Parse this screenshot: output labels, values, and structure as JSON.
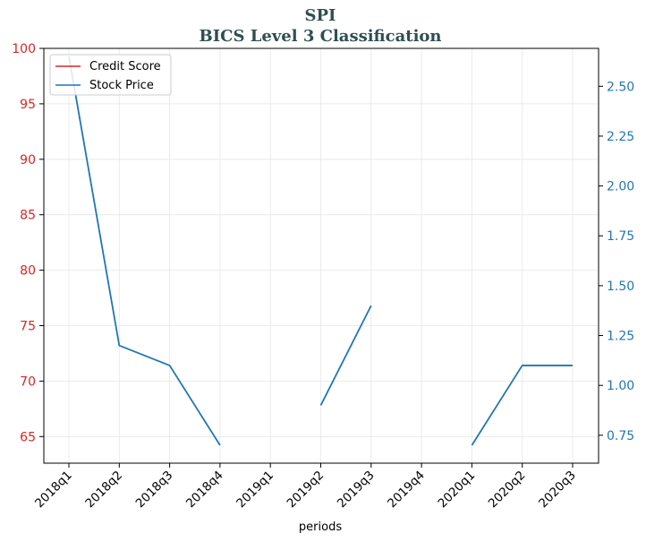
{
  "chart_data": {
    "type": "line",
    "title": "SPI",
    "subtitle": "BICS Level 3 Classification",
    "xlabel": "periods",
    "categories": [
      "2018q1",
      "2018q2",
      "2018q3",
      "2018q4",
      "2019q1",
      "2019q2",
      "2019q3",
      "2019q4",
      "2020q1",
      "2020q2",
      "2020q3"
    ],
    "y_left": {
      "ylim": [
        62.6,
        100
      ],
      "ticks": [
        65,
        70,
        75,
        80,
        85,
        90,
        95,
        100
      ],
      "color": "#d62728"
    },
    "y_right": {
      "ylim": [
        0.61,
        2.69
      ],
      "ticks": [
        0.75,
        1.0,
        1.25,
        1.5,
        1.75,
        2.0,
        2.25,
        2.5
      ],
      "tick_labels": [
        "0.75",
        "1.00",
        "1.25",
        "1.50",
        "1.75",
        "2.00",
        "2.25",
        "2.50"
      ],
      "color": "#1f77b4"
    },
    "series": [
      {
        "name": "Credit Score",
        "axis": "left",
        "color": "#d62728",
        "values": [
          null,
          null,
          null,
          null,
          null,
          null,
          null,
          null,
          null,
          null,
          null
        ]
      },
      {
        "name": "Stock Price",
        "axis": "right",
        "color": "#1f77b4",
        "values": [
          2.65,
          1.2,
          1.1,
          0.7,
          null,
          0.9,
          1.4,
          null,
          0.7,
          1.1,
          1.1
        ]
      }
    ],
    "grid": true,
    "legend_position": "top-left"
  }
}
